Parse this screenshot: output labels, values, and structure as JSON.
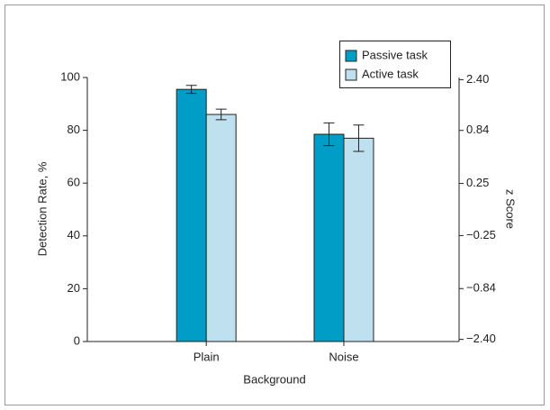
{
  "chart_data": {
    "type": "bar",
    "categories": [
      "Plain",
      "Noise"
    ],
    "series": [
      {
        "name": "Passive task",
        "color": "#009ec6",
        "values": [
          95.5,
          78.5
        ],
        "errors": [
          1.5,
          4.3
        ]
      },
      {
        "name": "Active task",
        "color": "#bfe0ef",
        "values": [
          86,
          77
        ],
        "errors": [
          2,
          5
        ]
      }
    ],
    "ylim": [
      0,
      100
    ],
    "yticks": [
      0,
      20,
      40,
      60,
      80,
      100
    ],
    "y2scale": "probit",
    "y2ticks": [
      {
        "value": -2.4,
        "label": "−2.40"
      },
      {
        "value": -0.84,
        "label": "−0.84"
      },
      {
        "value": -0.25,
        "label": "−0.25"
      },
      {
        "value": 0.25,
        "label": "0.25"
      },
      {
        "value": 0.84,
        "label": "0.84"
      },
      {
        "value": 2.4,
        "label": "2.40"
      }
    ],
    "xlabel": "Background",
    "ylabel": "Detection Rate, %",
    "y2label": "z Score",
    "legend": "upper right"
  }
}
